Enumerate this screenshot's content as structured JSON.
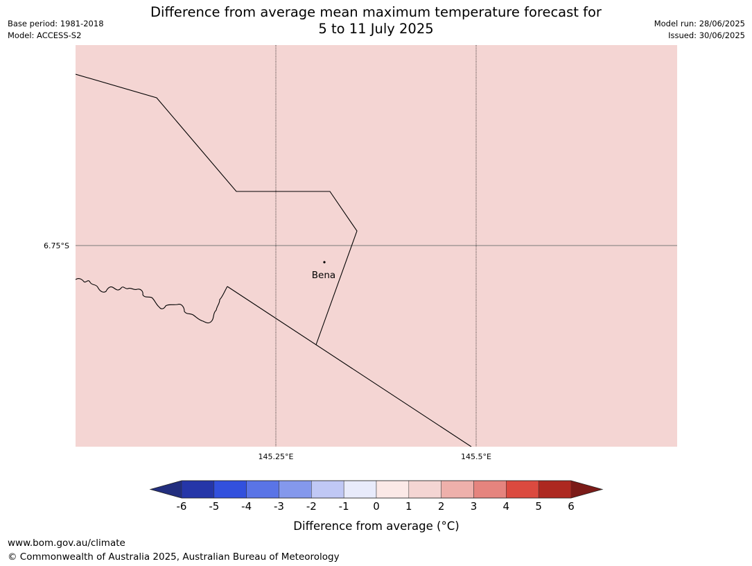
{
  "title": {
    "line1": "Difference from average mean maximum temperature forecast for",
    "line2": "5 to 11 July 2025"
  },
  "meta_left": {
    "base_period": "Base period: 1981-2018",
    "model": "Model: ACCESS-S2"
  },
  "meta_right": {
    "model_run": "Model run: 28/06/2025",
    "issued": "Issued: 30/06/2025"
  },
  "footer": {
    "url": "www.bom.gov.au/climate",
    "copyright": "© Commonwealth of Australia 2025, Australian Bureau of Meteorology"
  },
  "chart_data": {
    "type": "heatmap",
    "map_fill_value_range": [
      1,
      2
    ],
    "map_fill_color": "#f4d5d3",
    "grid": true,
    "lon_gridlines": [
      {
        "value": 145.25,
        "label": "145.25°E"
      },
      {
        "value": 145.5,
        "label": "145.5°E"
      }
    ],
    "lat_gridlines": [
      {
        "value": -6.75,
        "label": "6.75°S"
      }
    ],
    "place": {
      "name": "Bena"
    },
    "colorbar": {
      "label": "Difference from average (°C)",
      "ticks": [
        "-6",
        "-5",
        "-4",
        "-3",
        "-2",
        "-1",
        "0",
        "1",
        "2",
        "3",
        "4",
        "5",
        "6"
      ],
      "under_color": "#222e7e",
      "over_color": "#7b1b18",
      "colors": [
        "#2536a8",
        "#3250dd",
        "#5a74e6",
        "#8498ec",
        "#c0c8f5",
        "#e8ebfb",
        "#fbe9e7",
        "#f4d5d3",
        "#eeb0ab",
        "#e5847e",
        "#db4a3f",
        "#ad2820"
      ]
    }
  }
}
